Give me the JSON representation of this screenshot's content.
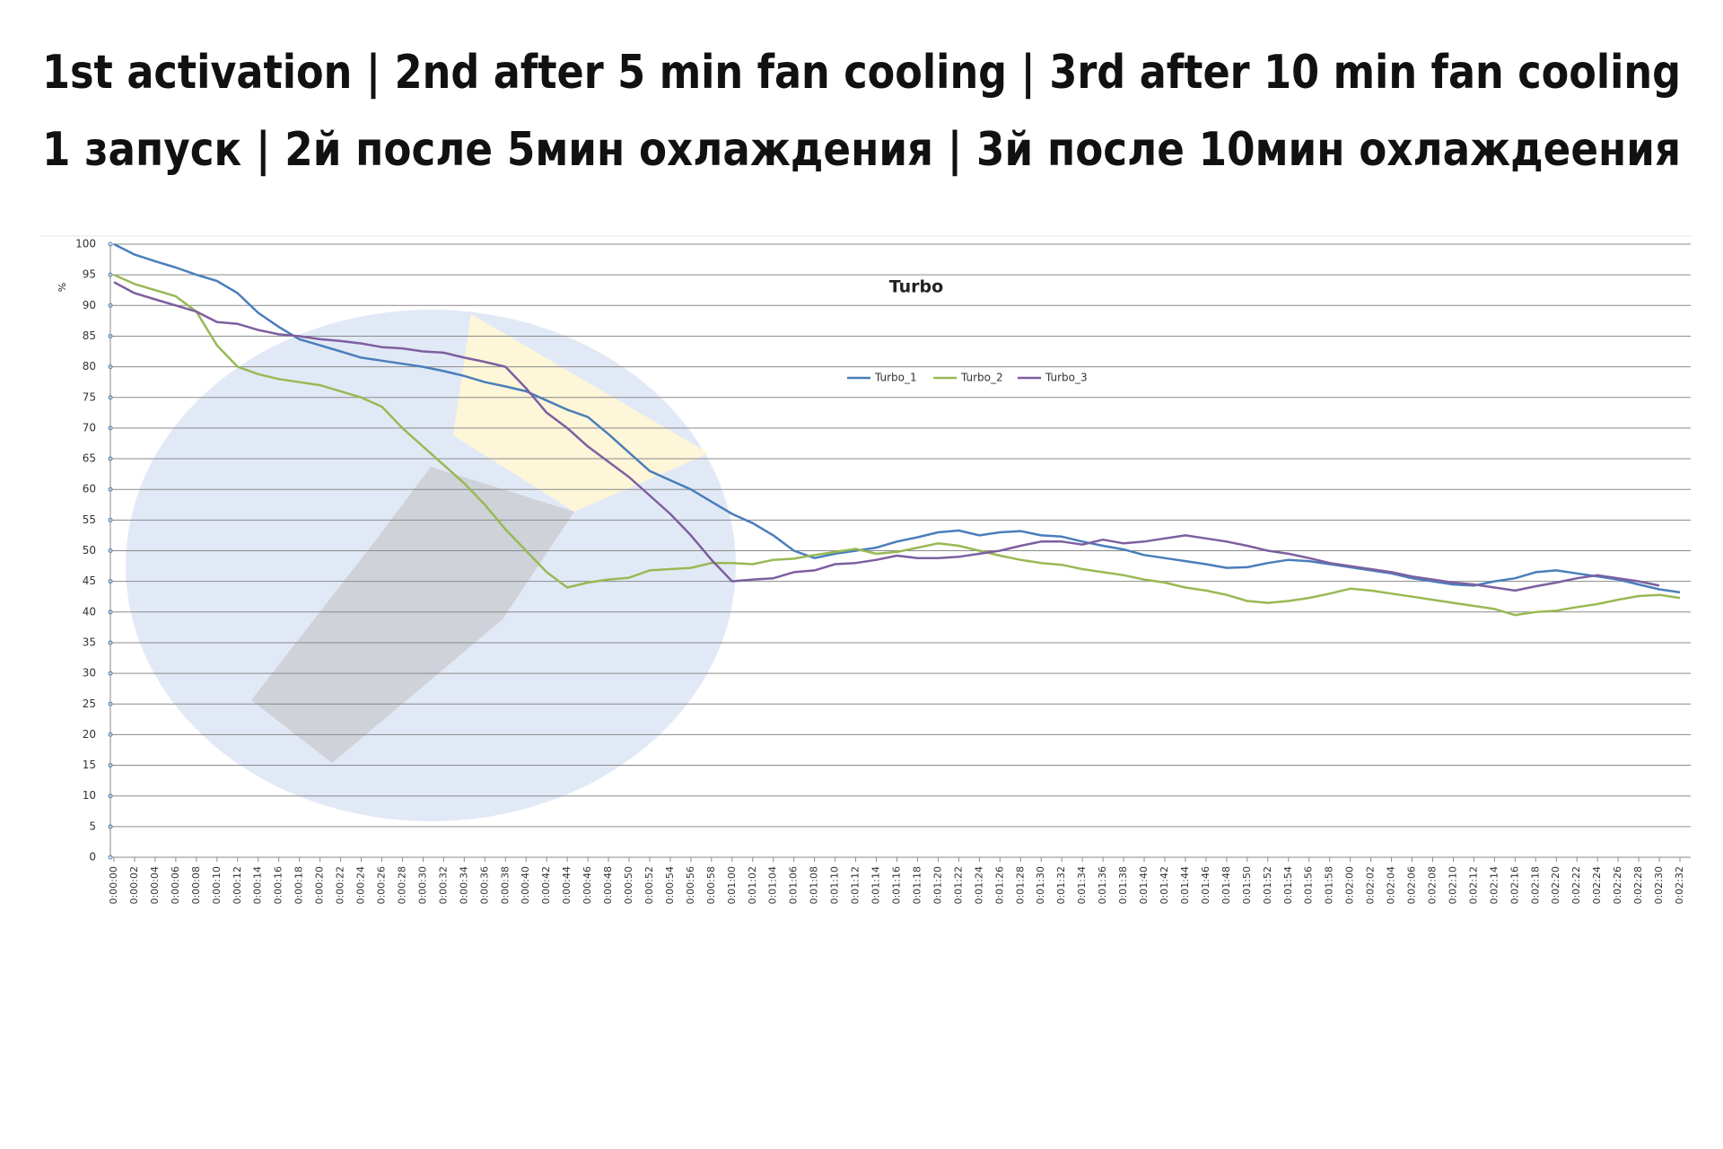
{
  "header": {
    "lines": [
      "1st activation | 2nd after 5 min fan cooling | 3rd after 10 min fan cooling",
      "1 запуск | 2й после 5мин охлаждения | 3й после 10мин охлаждеения"
    ]
  },
  "chart_data": {
    "type": "line",
    "title": "Turbo",
    "y_label": "%",
    "categories": [
      "0:00:00",
      "0:00:02",
      "0:00:04",
      "0:00:06",
      "0:00:08",
      "0:00:10",
      "0:00:12",
      "0:00:14",
      "0:00:16",
      "0:00:18",
      "0:00:20",
      "0:00:22",
      "0:00:24",
      "0:00:26",
      "0:00:28",
      "0:00:30",
      "0:00:32",
      "0:00:34",
      "0:00:36",
      "0:00:38",
      "0:00:40",
      "0:00:42",
      "0:00:44",
      "0:00:46",
      "0:00:48",
      "0:00:50",
      "0:00:52",
      "0:00:54",
      "0:00:56",
      "0:00:58",
      "0:01:00",
      "0:01:02",
      "0:01:04",
      "0:01:06",
      "0:01:08",
      "0:01:10",
      "0:01:12",
      "0:01:14",
      "0:01:16",
      "0:01:18",
      "0:01:20",
      "0:01:22",
      "0:01:24",
      "0:01:26",
      "0:01:28",
      "0:01:30",
      "0:01:32",
      "0:01:34",
      "0:01:36",
      "0:01:38",
      "0:01:40",
      "0:01:42",
      "0:01:44",
      "0:01:46",
      "0:01:48",
      "0:01:50",
      "0:01:52",
      "0:01:54",
      "0:01:56",
      "0:01:58",
      "0:02:00",
      "0:02:02",
      "0:02:04",
      "0:02:06",
      "0:02:08",
      "0:02:10",
      "0:02:12",
      "0:02:14",
      "0:02:16",
      "0:02:18",
      "0:02:20",
      "0:02:22",
      "0:02:24",
      "0:02:26",
      "0:02:28",
      "0:02:30",
      "0:02:32"
    ],
    "series": [
      {
        "name": "Turbo_1",
        "color": "#4a7ebb",
        "values": [
          100,
          98.3,
          97.2,
          96.2,
          95,
          94,
          92,
          88.8,
          86.5,
          84.5,
          83.5,
          82.5,
          81.5,
          81,
          80.5,
          80,
          79.3,
          78.5,
          77.5,
          76.8,
          76,
          74.5,
          73,
          71.8,
          69,
          66,
          63,
          61.5,
          60,
          58,
          56,
          54.5,
          52.5,
          50,
          48.8,
          49.5,
          50,
          50.5,
          51.5,
          52.2,
          53,
          53.3,
          52.5,
          53,
          53.2,
          52.5,
          52.3,
          51.5,
          50.8,
          50.2,
          49.3,
          48.8,
          48.3,
          47.8,
          47.2,
          47.3,
          48,
          48.5,
          48.3,
          47.8,
          47.3,
          46.8,
          46.3,
          45.5,
          45,
          44.5,
          44.3,
          45,
          45.5,
          46.5,
          46.8,
          46.3,
          45.8,
          45.3,
          44.5,
          43.7,
          43.2
        ]
      },
      {
        "name": "Turbo_2",
        "color": "#98b954",
        "values": [
          95,
          93.5,
          92.5,
          91.5,
          89,
          83.5,
          80,
          78.8,
          78,
          77.5,
          77,
          76,
          75,
          73.5,
          70,
          67,
          64,
          61,
          57.5,
          53.5,
          50,
          46.5,
          44,
          44.8,
          45.3,
          45.6,
          46.8,
          47,
          47.2,
          48,
          48,
          47.8,
          48.5,
          48.7,
          49.3,
          49.8,
          50.3,
          49.5,
          49.8,
          50.5,
          51.2,
          50.8,
          50,
          49.2,
          48.5,
          48,
          47.7,
          47,
          46.5,
          46,
          45.3,
          44.8,
          44,
          43.5,
          42.8,
          41.8,
          41.5,
          41.8,
          42.3,
          43,
          43.8,
          43.5,
          43,
          42.5,
          42,
          41.5,
          41,
          40.5,
          39.5,
          40,
          40.2,
          40.8,
          41.3,
          42,
          42.6,
          42.8,
          42.3
        ]
      },
      {
        "name": "Turbo_3",
        "color": "#7d5fa0",
        "values": [
          93.8,
          92,
          91,
          90,
          89,
          87.3,
          87,
          86,
          85.3,
          85,
          84.5,
          84.2,
          83.8,
          83.2,
          83,
          82.5,
          82.3,
          81.5,
          80.8,
          80,
          76.5,
          72.5,
          70,
          67,
          64.5,
          62,
          59,
          56,
          52.5,
          48.5,
          45,
          45.3,
          45.5,
          46.5,
          46.8,
          47.8,
          48,
          48.5,
          49.2,
          48.8,
          48.8,
          49,
          49.5,
          50,
          50.8,
          51.5,
          51.5,
          51,
          51.8,
          51.2,
          51.5,
          52,
          52.5,
          52,
          51.5,
          50.8,
          50,
          49.5,
          48.8,
          48,
          47.5,
          47,
          46.5,
          45.8,
          45.3,
          44.8,
          44.5,
          44,
          43.5,
          44.2,
          44.8,
          45.5,
          46,
          45.5,
          45,
          44.3,
          null
        ]
      }
    ],
    "ylim": [
      0,
      100
    ],
    "yticks": [
      0,
      5,
      10,
      15,
      20,
      25,
      30,
      35,
      40,
      45,
      50,
      55,
      60,
      65,
      70,
      75,
      80,
      85,
      90,
      95,
      100
    ],
    "grid": true,
    "legend": "top"
  }
}
